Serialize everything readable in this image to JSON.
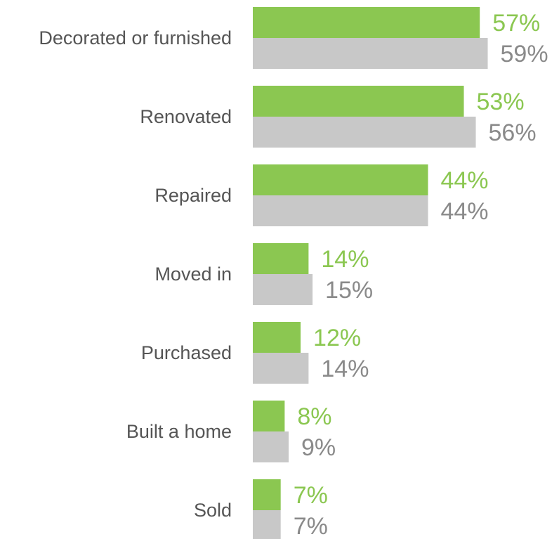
{
  "chart_data": {
    "type": "bar",
    "orientation": "horizontal",
    "categories": [
      "Decorated or furnished",
      "Renovated",
      "Repaired",
      "Moved in",
      "Purchased",
      "Built a home",
      "Sold"
    ],
    "series": [
      {
        "color": "#8bc751",
        "values": [
          57,
          53,
          44,
          14,
          12,
          8,
          7
        ],
        "value_labels": [
          "57%",
          "53%",
          "44%",
          "14%",
          "12%",
          "8%",
          "7%"
        ]
      },
      {
        "color": "#c8c8c8",
        "values": [
          59,
          56,
          44,
          15,
          14,
          9,
          7
        ],
        "value_labels": [
          "59%",
          "56%",
          "44%",
          "15%",
          "14%",
          "9%",
          "7%"
        ]
      }
    ]
  }
}
